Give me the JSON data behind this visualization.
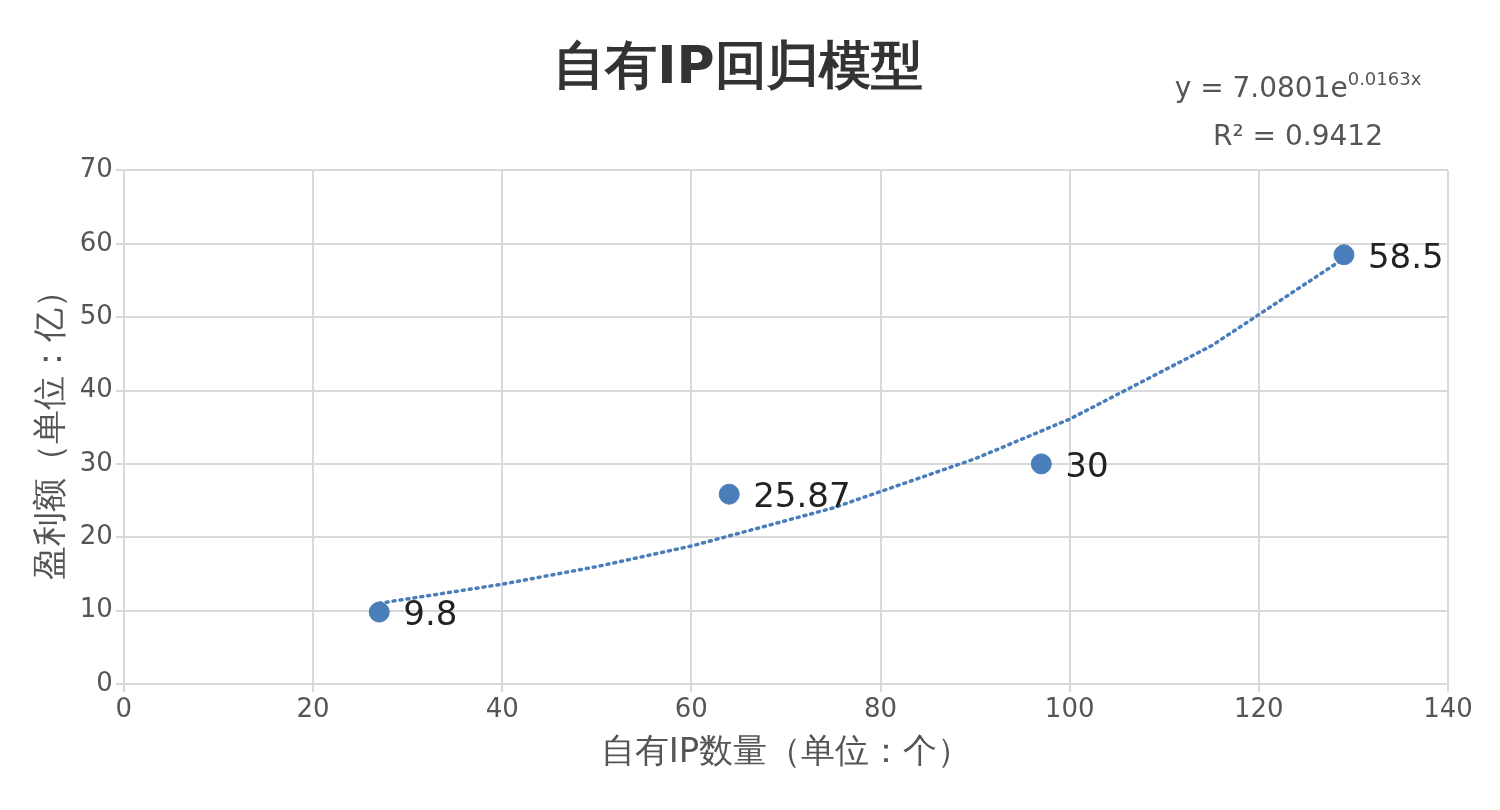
{
  "chart_data": {
    "type": "scatter",
    "title": "自有IP回归模型",
    "xlabel": "自有IP数量（单位：个）",
    "ylabel": "盈利额（单位：亿）",
    "xlim": [
      0,
      140
    ],
    "xticks": [
      0,
      20,
      40,
      60,
      80,
      100,
      120,
      140
    ],
    "ylim": [
      0,
      70
    ],
    "yticks": [
      0,
      10,
      20,
      30,
      40,
      50,
      60,
      70
    ],
    "grid": true,
    "legend": false,
    "annotations": [
      "y = 7.0801e$^{0.0163x}$",
      "R² = 0.9412"
    ],
    "series": [
      {
        "type": "scatter",
        "color": "#4a7ebb",
        "marker": "circle",
        "x": [
          27,
          64,
          97,
          129
        ],
        "values": [
          9.8,
          25.87,
          30,
          58.5
        ],
        "value_labels": [
          "9.8",
          "25.87",
          "30",
          "58.5"
        ]
      },
      {
        "type": "line",
        "color": "#4a7ebb",
        "marker": "none",
        "line_style": "dotted",
        "x": [
          27,
          40,
          50,
          60,
          75,
          90,
          100,
          115,
          129
        ],
        "values": [
          11.0,
          13.6,
          16.0,
          18.8,
          24.0,
          30.7,
          36.1,
          46.1,
          58.0
        ]
      }
    ]
  }
}
